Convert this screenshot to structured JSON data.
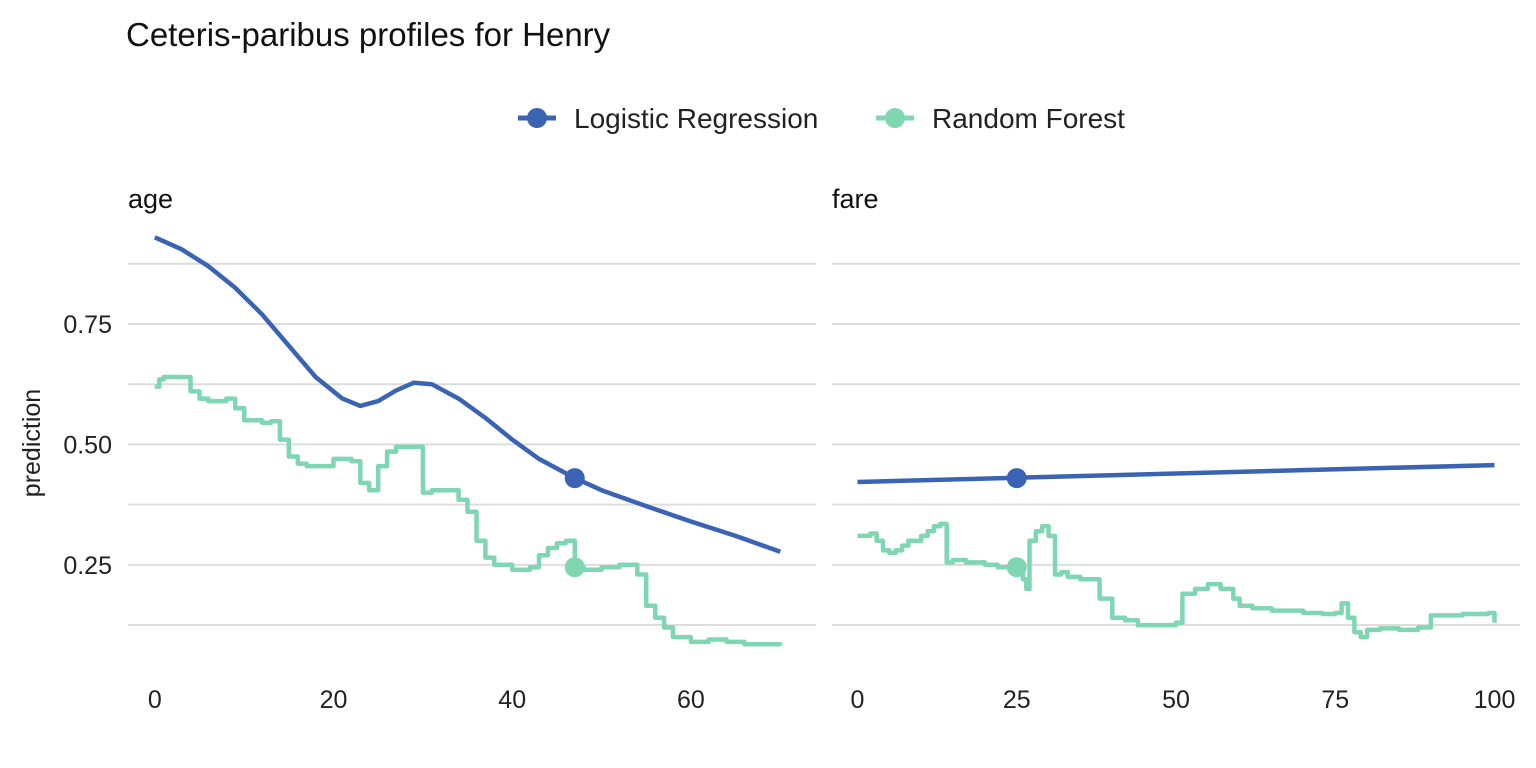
{
  "chart_data": {
    "type": "line",
    "title": "Ceteris-paribus profiles for Henry",
    "ylabel": "prediction",
    "ylim": [
      0.04,
      0.97
    ],
    "y_ticks": [
      0.25,
      0.5,
      0.75
    ],
    "y_tick_labels": [
      "0.25",
      "0.50",
      "0.75"
    ],
    "grid": true,
    "legend": {
      "position": "top",
      "entries": [
        {
          "name": "Logistic Regression",
          "color": "#3a63b4"
        },
        {
          "name": "Random Forest",
          "color": "#7ed6b2"
        }
      ]
    },
    "panels": [
      {
        "strip_label": "age",
        "xlim": [
          -3,
          74
        ],
        "x_ticks": [
          0,
          20,
          40,
          60
        ],
        "observation": {
          "x": 47,
          "y": {
            "Logistic Regression": 0.43,
            "Random Forest": 0.245
          }
        },
        "series": [
          {
            "name": "Logistic Regression",
            "step": false,
            "x": [
              0,
              3,
              6,
              9,
              12,
              15,
              18,
              21,
              23,
              25,
              27,
              29,
              31,
              34,
              37,
              40,
              43,
              47,
              50,
              55,
              60,
              65,
              70
            ],
            "y": [
              0.93,
              0.905,
              0.87,
              0.825,
              0.77,
              0.705,
              0.64,
              0.595,
              0.58,
              0.59,
              0.612,
              0.628,
              0.625,
              0.595,
              0.555,
              0.51,
              0.47,
              0.43,
              0.405,
              0.372,
              0.34,
              0.31,
              0.277
            ]
          },
          {
            "name": "Random Forest",
            "step": true,
            "x": [
              0,
              0.5,
              1,
              3,
              4,
              5,
              6,
              8,
              9,
              10,
              12,
              13,
              14,
              15,
              16,
              17,
              19,
              20,
              22,
              23,
              24,
              25,
              26,
              27,
              29,
              30,
              31,
              33,
              34,
              35,
              36,
              37,
              38,
              40,
              42,
              43,
              44,
              45,
              46,
              47,
              48,
              50,
              52,
              53,
              54,
              55,
              56,
              57,
              58,
              60,
              62,
              64,
              66,
              70
            ],
            "y": [
              0.62,
              0.635,
              0.64,
              0.64,
              0.61,
              0.595,
              0.59,
              0.595,
              0.575,
              0.55,
              0.545,
              0.548,
              0.51,
              0.475,
              0.46,
              0.455,
              0.455,
              0.47,
              0.465,
              0.42,
              0.405,
              0.455,
              0.485,
              0.495,
              0.495,
              0.4,
              0.405,
              0.405,
              0.385,
              0.36,
              0.3,
              0.265,
              0.25,
              0.24,
              0.245,
              0.27,
              0.285,
              0.295,
              0.3,
              0.245,
              0.24,
              0.245,
              0.25,
              0.25,
              0.23,
              0.165,
              0.14,
              0.12,
              0.1,
              0.09,
              0.095,
              0.09,
              0.085,
              0.083
            ]
          }
        ]
      },
      {
        "strip_label": "fare",
        "xlim": [
          -4,
          104
        ],
        "x_ticks": [
          0,
          25,
          50,
          75,
          100
        ],
        "observation": {
          "x": 25,
          "y": {
            "Logistic Regression": 0.43,
            "Random Forest": 0.245
          }
        },
        "series": [
          {
            "name": "Logistic Regression",
            "step": false,
            "x": [
              0,
              100
            ],
            "y": [
              0.422,
              0.457
            ]
          },
          {
            "name": "Random Forest",
            "step": true,
            "x": [
              0,
              2,
              3,
              4,
              5,
              6,
              7,
              8,
              10,
              11,
              12,
              13,
              14,
              15,
              17,
              20,
              22,
              24,
              25,
              26,
              26.5,
              27,
              28,
              29,
              30,
              31,
              32,
              33,
              35,
              38,
              40,
              42,
              44,
              46,
              48,
              50,
              51,
              53,
              55,
              57,
              59,
              60,
              62,
              65,
              70,
              73,
              75,
              76,
              77,
              78,
              79,
              80,
              82,
              85,
              88,
              90,
              95,
              99,
              100
            ],
            "y": [
              0.31,
              0.315,
              0.3,
              0.28,
              0.275,
              0.28,
              0.29,
              0.3,
              0.31,
              0.32,
              0.33,
              0.335,
              0.255,
              0.26,
              0.255,
              0.25,
              0.245,
              0.24,
              0.25,
              0.22,
              0.2,
              0.3,
              0.32,
              0.33,
              0.31,
              0.23,
              0.235,
              0.225,
              0.22,
              0.18,
              0.14,
              0.135,
              0.125,
              0.125,
              0.125,
              0.13,
              0.19,
              0.2,
              0.21,
              0.2,
              0.18,
              0.165,
              0.16,
              0.155,
              0.15,
              0.148,
              0.15,
              0.17,
              0.14,
              0.11,
              0.1,
              0.115,
              0.118,
              0.115,
              0.12,
              0.145,
              0.148,
              0.15,
              0.13
            ]
          }
        ]
      }
    ]
  }
}
